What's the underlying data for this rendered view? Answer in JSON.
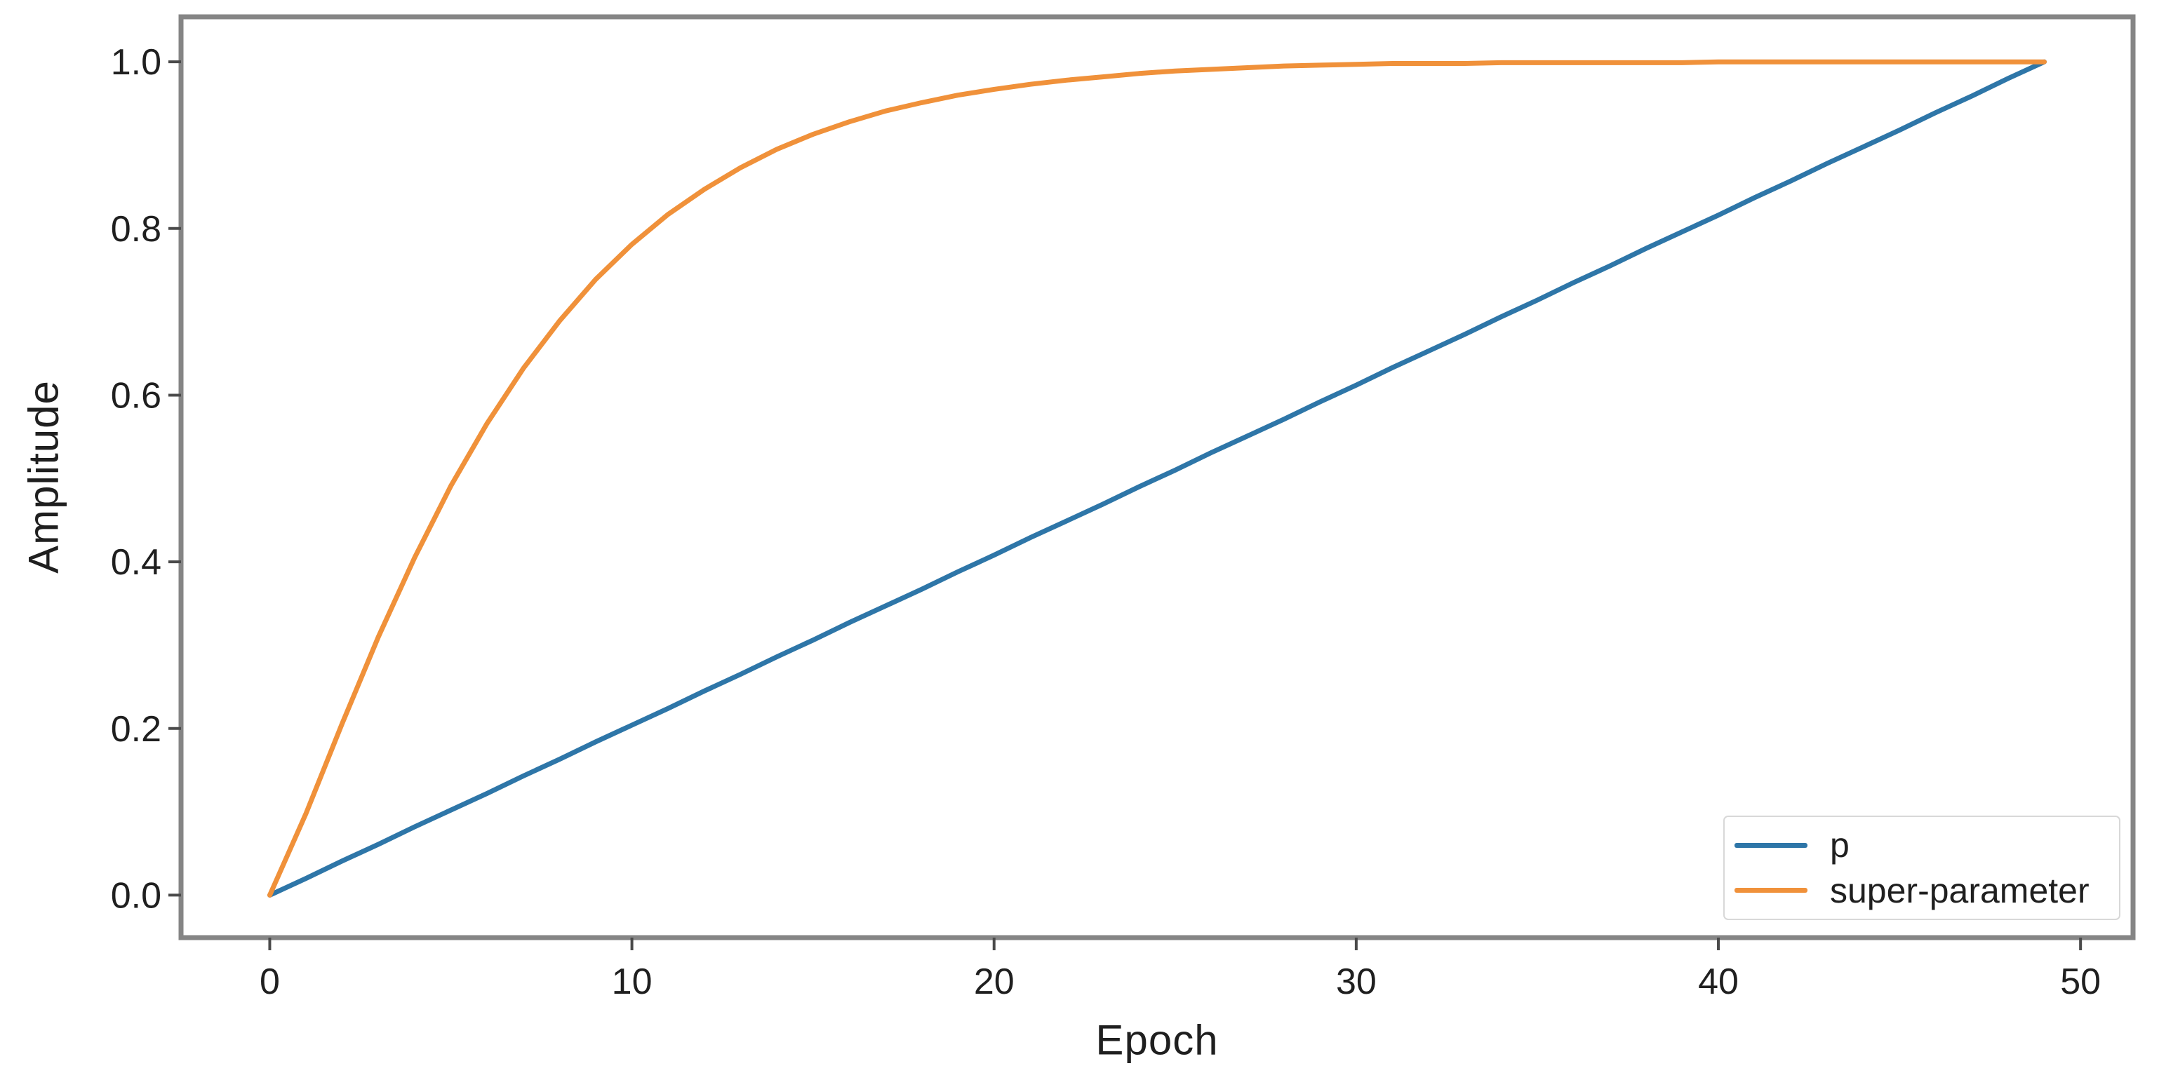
{
  "figure": {
    "background": "#ffffff",
    "spine_color": "#858585",
    "tick_color": "#4a4a4a",
    "text_color": "#1f1f1f",
    "legend_border_color": "#d8d8d8"
  },
  "chart_data": {
    "type": "line",
    "title": "",
    "xlabel": "Epoch",
    "ylabel": "Amplitude",
    "xlim": [
      -2.45,
      51.45
    ],
    "ylim": [
      -0.051,
      1.054
    ],
    "x_ticks": [
      0,
      10,
      20,
      30,
      40,
      50
    ],
    "x_tick_labels": [
      "0",
      "10",
      "20",
      "30",
      "40",
      "50"
    ],
    "y_ticks": [
      0.0,
      0.2,
      0.4,
      0.6,
      0.8,
      1.0
    ],
    "y_tick_labels": [
      "0.0",
      "0.2",
      "0.4",
      "0.6",
      "0.8",
      "1.0"
    ],
    "grid": false,
    "legend_position": "lower right",
    "x": [
      0,
      1,
      2,
      3,
      4,
      5,
      6,
      7,
      8,
      9,
      10,
      11,
      12,
      13,
      14,
      15,
      16,
      17,
      18,
      19,
      20,
      21,
      22,
      23,
      24,
      25,
      26,
      27,
      28,
      29,
      30,
      31,
      32,
      33,
      34,
      35,
      36,
      37,
      38,
      39,
      40,
      41,
      42,
      43,
      44,
      45,
      46,
      47,
      48,
      49
    ],
    "series": [
      {
        "name": "p",
        "color": "#2e76a8",
        "values": [
          0,
          0.02,
          0.041,
          0.061,
          0.082,
          0.102,
          0.122,
          0.143,
          0.163,
          0.184,
          0.204,
          0.224,
          0.245,
          0.265,
          0.286,
          0.306,
          0.327,
          0.347,
          0.367,
          0.388,
          0.408,
          0.429,
          0.449,
          0.469,
          0.49,
          0.51,
          0.531,
          0.551,
          0.571,
          0.592,
          0.612,
          0.633,
          0.653,
          0.673,
          0.694,
          0.714,
          0.735,
          0.755,
          0.776,
          0.796,
          0.816,
          0.837,
          0.857,
          0.878,
          0.898,
          0.918,
          0.939,
          0.959,
          0.98,
          1.0
        ]
      },
      {
        "name": "super-parameter",
        "color": "#f0913a",
        "values": [
          0,
          0.098,
          0.206,
          0.31,
          0.405,
          0.491,
          0.566,
          0.632,
          0.689,
          0.739,
          0.781,
          0.817,
          0.847,
          0.873,
          0.895,
          0.913,
          0.928,
          0.941,
          0.951,
          0.96,
          0.967,
          0.973,
          0.978,
          0.982,
          0.986,
          0.989,
          0.991,
          0.993,
          0.995,
          0.996,
          0.997,
          0.998,
          0.998,
          0.998,
          0.999,
          0.999,
          0.999,
          0.999,
          0.999,
          0.999,
          1.0,
          1.0,
          1.0,
          1.0,
          1.0,
          1.0,
          1.0,
          1.0,
          1.0,
          1.0
        ]
      }
    ]
  }
}
